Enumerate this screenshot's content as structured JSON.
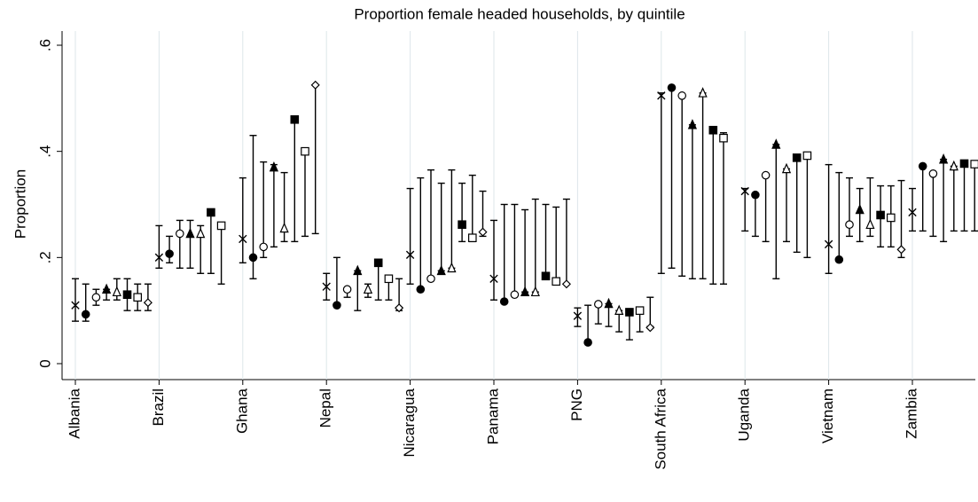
{
  "chart_data": {
    "type": "dot-errorbar",
    "title": "Proportion female headed households, by quintile",
    "y_label": "Proportion",
    "categories": [
      "Albania",
      "Brazil",
      "Ghana",
      "Nepal",
      "Nicaragua",
      "Panama",
      "PNG",
      "South Africa",
      "Uganda",
      "Vietnam",
      "Zambia"
    ],
    "ylim": [
      0,
      0.6
    ],
    "yticks": [
      0,
      {
        "value": 0.2,
        "label": ".2"
      },
      {
        "value": 0.4,
        "label": ".4"
      },
      {
        "value": 0.6,
        "label": ".6"
      }
    ],
    "color": "#000000",
    "grid": true,
    "series": [
      {
        "marker": "x",
        "values": [
          0.11,
          0.2,
          0.235,
          0.145,
          0.205,
          0.16,
          0.09,
          0.505,
          0.325,
          0.225,
          0.285
        ],
        "low": [
          0.08,
          0.18,
          0.19,
          0.12,
          0.15,
          0.12,
          0.07,
          0.17,
          0.25,
          0.17,
          0.25
        ],
        "high": [
          0.16,
          0.26,
          0.35,
          0.17,
          0.33,
          0.27,
          0.105,
          0.51,
          0.33,
          0.375,
          0.33
        ]
      },
      {
        "marker": "circle",
        "values": [
          0.093,
          0.207,
          0.2,
          0.11,
          0.14,
          0.117,
          0.04,
          0.52,
          0.318,
          0.196,
          0.372
        ],
        "low": [
          0.08,
          0.19,
          0.16,
          0.11,
          0.14,
          0.117,
          0.04,
          0.18,
          0.24,
          0.196,
          0.25
        ],
        "high": [
          0.15,
          0.24,
          0.43,
          0.2,
          0.35,
          0.3,
          0.11,
          0.52,
          0.32,
          0.36,
          0.37
        ]
      },
      {
        "marker": "circle-open",
        "values": [
          0.125,
          0.245,
          0.22,
          0.14,
          0.16,
          0.13,
          0.112,
          0.505,
          0.355,
          0.262,
          0.358
        ],
        "low": [
          0.11,
          0.18,
          0.2,
          0.125,
          0.16,
          0.13,
          0.075,
          0.165,
          0.23,
          0.24,
          0.24
        ],
        "high": [
          0.14,
          0.27,
          0.38,
          0.14,
          0.365,
          0.3,
          0.112,
          0.505,
          0.355,
          0.35,
          0.36
        ]
      },
      {
        "marker": "triangle",
        "values": [
          0.14,
          0.245,
          0.37,
          0.175,
          0.175,
          0.135,
          0.113,
          0.45,
          0.413,
          0.29,
          0.385
        ],
        "low": [
          0.12,
          0.18,
          0.22,
          0.1,
          0.175,
          0.135,
          0.07,
          0.16,
          0.16,
          0.23,
          0.23
        ],
        "high": [
          0.14,
          0.27,
          0.375,
          0.175,
          0.34,
          0.29,
          0.113,
          0.45,
          0.413,
          0.33,
          0.385
        ]
      },
      {
        "marker": "triangle-open",
        "values": [
          0.135,
          0.245,
          0.255,
          0.14,
          0.18,
          0.135,
          0.1,
          0.51,
          0.367,
          0.262,
          0.372
        ],
        "low": [
          0.12,
          0.17,
          0.23,
          0.125,
          0.18,
          0.135,
          0.06,
          0.16,
          0.23,
          0.24,
          0.25
        ],
        "high": [
          0.16,
          0.26,
          0.36,
          0.15,
          0.365,
          0.31,
          0.1,
          0.51,
          0.367,
          0.35,
          0.372
        ]
      },
      {
        "marker": "square",
        "values": [
          0.13,
          0.285,
          0.46,
          0.19,
          0.262,
          0.165,
          0.097,
          0.44,
          0.388,
          0.28,
          0.377
        ],
        "low": [
          0.1,
          0.17,
          0.23,
          0.12,
          0.23,
          0.165,
          0.045,
          0.15,
          0.21,
          0.22,
          0.25
        ],
        "high": [
          0.16,
          0.285,
          0.46,
          0.19,
          0.34,
          0.3,
          0.097,
          0.44,
          0.388,
          0.335,
          0.377
        ]
      },
      {
        "marker": "square-open",
        "values": [
          0.125,
          0.26,
          0.4,
          0.16,
          0.237,
          0.155,
          0.1,
          0.425,
          0.392,
          0.275,
          0.376
        ],
        "low": [
          0.1,
          0.15,
          0.24,
          0.12,
          0.23,
          0.155,
          0.06,
          0.15,
          0.2,
          0.22,
          0.25
        ],
        "high": [
          0.15,
          0.26,
          0.4,
          0.16,
          0.355,
          0.295,
          0.1,
          0.435,
          0.392,
          0.335,
          0.376
        ]
      },
      {
        "marker": "diamond-open",
        "values": [
          0.115,
          null,
          0.525,
          0.105,
          0.248,
          0.15,
          0.068,
          null,
          null,
          0.215,
          null
        ],
        "low": [
          0.1,
          null,
          0.245,
          0.1,
          0.24,
          0.15,
          0.07,
          null,
          null,
          0.2,
          null
        ],
        "high": [
          0.15,
          null,
          0.525,
          0.16,
          0.325,
          0.31,
          0.125,
          null,
          null,
          0.345,
          null
        ]
      }
    ]
  }
}
